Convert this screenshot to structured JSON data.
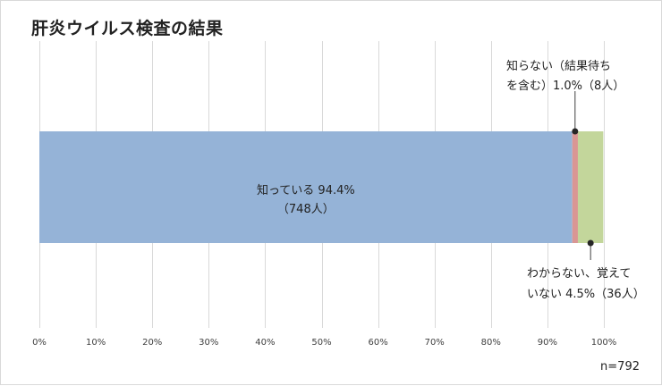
{
  "chart_data": {
    "type": "bar",
    "orientation": "horizontal",
    "stacked": true,
    "title": "肝炎ウイルス検査の結果",
    "note": "n=792",
    "xlim": [
      0,
      100
    ],
    "x_ticks": [
      "0%",
      "10%",
      "20%",
      "30%",
      "40%",
      "50%",
      "60%",
      "70%",
      "80%",
      "90%",
      "100%"
    ],
    "grid": true,
    "series": [
      {
        "values": [
          94.4
        ],
        "color": "#95b3d7",
        "label_lines": [
          "知っている 94.4%",
          "（748人）"
        ]
      },
      {
        "values": [
          1.0
        ],
        "color": "#d99694",
        "label_lines": [
          "知らない（結果待ち",
          "を含む）1.0%（8人）"
        ]
      },
      {
        "values": [
          4.5
        ],
        "color": "#c3d69b",
        "label_lines": [
          "わからない、覚えて",
          "いない 4.5%（36人）"
        ]
      }
    ]
  }
}
